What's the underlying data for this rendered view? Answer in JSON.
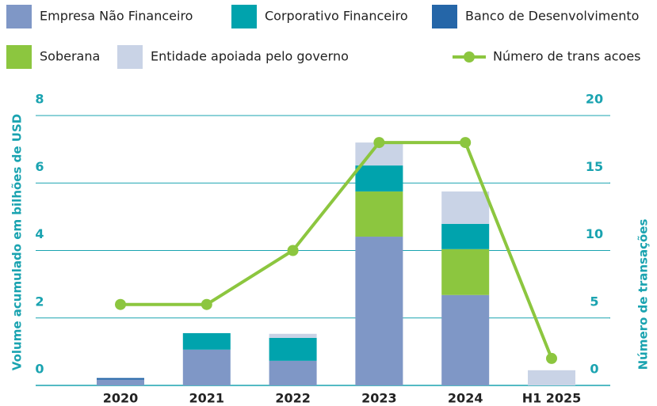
{
  "chart_data": {
    "type": "bar",
    "categories": [
      "2020",
      "2021",
      "2022",
      "2023",
      "2024",
      "H1 2025"
    ],
    "series": [
      {
        "name": "Empresa Não Financeiro",
        "color": "#7f97c6",
        "values": [
          0.17,
          1.06,
          0.73,
          4.41,
          2.68,
          null
        ]
      },
      {
        "name": "Corporativo Financeiro",
        "color": "#00a3ad",
        "values": [
          null,
          0.49,
          0.68,
          0.77,
          0.75,
          null
        ]
      },
      {
        "name": "Banco de Desenvolvimento",
        "color": "#2566a8",
        "values": [
          0.05,
          null,
          null,
          null,
          null,
          null
        ]
      },
      {
        "name": "Soberana",
        "color": "#8cc63f",
        "values": [
          null,
          null,
          null,
          1.34,
          1.36,
          null
        ]
      },
      {
        "name": "Entidade apoiada pelo governo",
        "color": "#c9d3e6",
        "values": [
          null,
          null,
          0.12,
          0.68,
          0.96,
          0.45
        ]
      },
      {
        "name": "Número de trans acoes",
        "color": "#8cc63f",
        "type": "line",
        "axis": "y2",
        "values": [
          6,
          6,
          10,
          18,
          18,
          2
        ]
      }
    ],
    "stack_order": [
      0,
      3,
      1,
      2,
      4
    ],
    "ylabel": "Volume acumulado em bilhões de USD",
    "y2label": "Número de transações",
    "ylim": [
      0,
      8
    ],
    "yticks": [
      0,
      2,
      4,
      6,
      8
    ],
    "y2lim": [
      0,
      20
    ],
    "y2ticks": [
      0,
      5,
      10,
      15,
      20
    ],
    "grid": true
  }
}
